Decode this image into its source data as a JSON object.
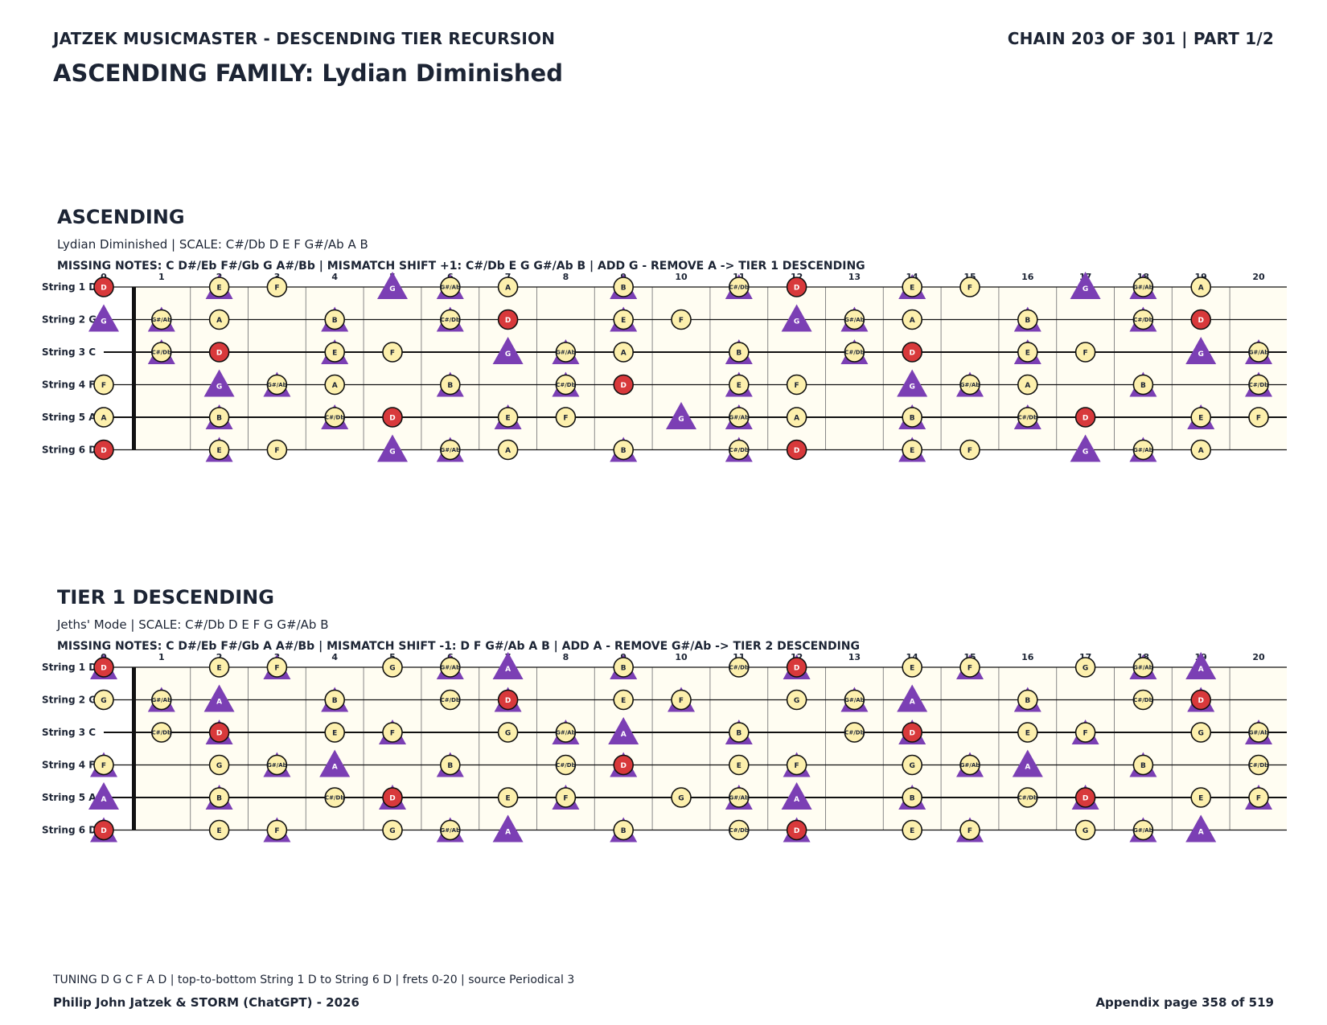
{
  "header": {
    "left": "JATZEK MUSICMASTER - DESCENDING TIER RECURSION",
    "right": "CHAIN 203 OF 301  |  PART 1/2",
    "family": "ASCENDING FAMILY: Lydian Diminished"
  },
  "colors": {
    "root": "#d8393b",
    "scale": "#fdf0ad",
    "marker": "#7b3fb4",
    "board": "#fffdf2"
  },
  "strings": [
    "String 1 D",
    "String 2 G",
    "String 3 C",
    "String 4 F",
    "String 5 A",
    "String 6 D"
  ],
  "fret_numbers": [
    "0",
    "1",
    "2",
    "3",
    "4",
    "5",
    "6",
    "7",
    "8",
    "9",
    "10",
    "11",
    "12",
    "13",
    "14",
    "15",
    "16",
    "17",
    "18",
    "19",
    "20"
  ],
  "sections": [
    {
      "title": "ASCENDING",
      "scale_line": "Lydian Diminished  |  SCALE: C#/Db D E F G#/Ab A B",
      "missing_line": "MISSING NOTES: C D#/Eb F#/Gb G A#/Bb  |  MISMATCH SHIFT +1: C#/Db E G G#/Ab B  |  ADD G - REMOVE A -> TIER 1 DESCENDING",
      "rows": [
        [
          "D",
          "",
          "E",
          "F",
          "",
          "",
          "G#/Ab",
          "A",
          "",
          "B",
          "",
          "C#/Db",
          "D",
          "",
          "E",
          "F",
          "",
          "",
          "G#/Ab",
          "A",
          ""
        ],
        [
          "",
          "G#/Ab",
          "A",
          "",
          "B",
          "",
          "C#/Db",
          "D",
          "",
          "E",
          "F",
          "",
          "",
          "G#/Ab",
          "A",
          "",
          "B",
          "",
          "C#/Db",
          "D",
          ""
        ],
        [
          "",
          "C#/Db",
          "D",
          "",
          "E",
          "F",
          "",
          "",
          "G#/Ab",
          "A",
          "",
          "B",
          "",
          "C#/Db",
          "D",
          "",
          "E",
          "F",
          "",
          "",
          "G#/Ab"
        ],
        [
          "F",
          "",
          "",
          "G#/Ab",
          "A",
          "",
          "B",
          "",
          "C#/Db",
          "D",
          "",
          "E",
          "F",
          "",
          "",
          "G#/Ab",
          "A",
          "",
          "B",
          "",
          "C#/Db"
        ],
        [
          "A",
          "",
          "B",
          "",
          "C#/Db",
          "D",
          "",
          "E",
          "F",
          "",
          "",
          "G#/Ab",
          "A",
          "",
          "B",
          "",
          "C#/Db",
          "D",
          "",
          "E",
          "F"
        ],
        [
          "D",
          "",
          "E",
          "F",
          "",
          "",
          "G#/Ab",
          "A",
          "",
          "B",
          "",
          "C#/Db",
          "D",
          "",
          "E",
          "F",
          "",
          "",
          "G#/Ab",
          "A",
          ""
        ]
      ],
      "markers": [
        [
          "",
          "",
          "t",
          "",
          "",
          "T",
          "t",
          "",
          "",
          "t",
          "",
          "t",
          "",
          "",
          "t",
          "",
          "",
          "T",
          "t",
          "",
          ""
        ],
        [
          "T",
          "t",
          "",
          "",
          "t",
          "",
          "t",
          "",
          "",
          "t",
          "",
          "",
          "T",
          "t",
          "",
          "",
          "t",
          "",
          "t",
          "",
          ""
        ],
        [
          "",
          "t",
          "",
          "",
          "t",
          "",
          "",
          "T",
          "t",
          "",
          "",
          "t",
          "",
          "t",
          "",
          "",
          "t",
          "",
          "",
          "T",
          "t"
        ],
        [
          "",
          "",
          "T",
          "t",
          "",
          "",
          "t",
          "",
          "t",
          "",
          "",
          "t",
          "",
          "",
          "T",
          "t",
          "",
          "",
          "t",
          "",
          "t"
        ],
        [
          "",
          "",
          "t",
          "",
          "t",
          "",
          "",
          "t",
          "",
          "",
          "T",
          "t",
          "",
          "",
          "t",
          "",
          "t",
          "",
          "",
          "t",
          ""
        ],
        [
          "",
          "",
          "t",
          "",
          "",
          "T",
          "t",
          "",
          "",
          "t",
          "",
          "t",
          "",
          "",
          "t",
          "",
          "",
          "T",
          "t",
          "",
          ""
        ]
      ],
      "marker_labels": [
        [
          "",
          "",
          "",
          "",
          "",
          "G",
          "",
          "",
          "",
          "",
          "",
          "",
          "",
          "",
          "",
          "",
          "",
          "G",
          "",
          "",
          ""
        ],
        [
          "G",
          "",
          "",
          "",
          "",
          "",
          "",
          "",
          "",
          "",
          "",
          "",
          "G",
          "",
          "",
          "",
          "",
          "",
          "",
          "",
          ""
        ],
        [
          "",
          "",
          "",
          "",
          "",
          "",
          "",
          "G",
          "",
          "",
          "",
          "",
          "",
          "",
          "",
          "",
          "",
          "",
          "",
          "G",
          ""
        ],
        [
          "",
          "",
          "G",
          "",
          "",
          "",
          "",
          "",
          "",
          "",
          "",
          "",
          "",
          "",
          "G",
          "",
          "",
          "",
          "",
          "",
          ""
        ],
        [
          "",
          "",
          "",
          "",
          "",
          "",
          "",
          "",
          "",
          "",
          "G",
          "",
          "",
          "",
          "",
          "",
          "",
          "",
          "",
          "",
          ""
        ],
        [
          "",
          "",
          "",
          "",
          "",
          "G",
          "",
          "",
          "",
          "",
          "",
          "",
          "",
          "",
          "",
          "",
          "",
          "G",
          "",
          "",
          ""
        ]
      ]
    },
    {
      "title": "TIER 1 DESCENDING",
      "scale_line": "Jeths' Mode  |  SCALE: C#/Db D E F G G#/Ab B",
      "missing_line": "MISSING NOTES: C D#/Eb F#/Gb A A#/Bb  |  MISMATCH SHIFT -1: D F G#/Ab A B  |  ADD A - REMOVE G#/Ab -> TIER 2 DESCENDING",
      "rows": [
        [
          "D",
          "",
          "E",
          "F",
          "",
          "G",
          "G#/Ab",
          "",
          "",
          "B",
          "",
          "C#/Db",
          "D",
          "",
          "E",
          "F",
          "",
          "G",
          "G#/Ab",
          "",
          ""
        ],
        [
          "G",
          "G#/Ab",
          "",
          "",
          "B",
          "",
          "C#/Db",
          "D",
          "",
          "E",
          "F",
          "",
          "G",
          "G#/Ab",
          "",
          "",
          "B",
          "",
          "C#/Db",
          "D",
          ""
        ],
        [
          "",
          "C#/Db",
          "D",
          "",
          "E",
          "F",
          "",
          "G",
          "G#/Ab",
          "",
          "",
          "B",
          "",
          "C#/Db",
          "D",
          "",
          "E",
          "F",
          "",
          "G",
          "G#/Ab"
        ],
        [
          "F",
          "",
          "G",
          "G#/Ab",
          "",
          "",
          "B",
          "",
          "C#/Db",
          "D",
          "",
          "E",
          "F",
          "",
          "G",
          "G#/Ab",
          "",
          "",
          "B",
          "",
          "C#/Db"
        ],
        [
          "",
          "",
          "B",
          "",
          "C#/Db",
          "D",
          "",
          "E",
          "F",
          "",
          "G",
          "G#/Ab",
          "",
          "",
          "B",
          "",
          "C#/Db",
          "D",
          "",
          "E",
          "F"
        ],
        [
          "D",
          "",
          "E",
          "F",
          "",
          "G",
          "G#/Ab",
          "",
          "",
          "B",
          "",
          "C#/Db",
          "D",
          "",
          "E",
          "F",
          "",
          "G",
          "G#/Ab",
          "",
          ""
        ]
      ],
      "markers": [
        [
          "t",
          "",
          "",
          "t",
          "",
          "",
          "t",
          "T",
          "",
          "t",
          "",
          "",
          "t",
          "",
          "",
          "t",
          "",
          "",
          "t",
          "T",
          ""
        ],
        [
          "",
          "t",
          "T",
          "",
          "t",
          "",
          "",
          "t",
          "",
          "",
          "t",
          "",
          "",
          "t",
          "T",
          "",
          "t",
          "",
          "",
          "t",
          ""
        ],
        [
          "",
          "",
          "t",
          "",
          "",
          "t",
          "",
          "",
          "t",
          "T",
          "",
          "t",
          "",
          "",
          "t",
          "",
          "",
          "t",
          "",
          "",
          "t"
        ],
        [
          "t",
          "",
          "",
          "t",
          "T",
          "",
          "t",
          "",
          "",
          "t",
          "",
          "",
          "t",
          "",
          "",
          "t",
          "T",
          "",
          "t",
          "",
          ""
        ],
        [
          "T",
          "",
          "t",
          "",
          "",
          "t",
          "",
          "",
          "t",
          "",
          "",
          "t",
          "T",
          "",
          "t",
          "",
          "",
          "t",
          "",
          "",
          "t"
        ],
        [
          "t",
          "",
          "",
          "t",
          "",
          "",
          "t",
          "T",
          "",
          "t",
          "",
          "",
          "t",
          "",
          "",
          "t",
          "",
          "",
          "t",
          "T",
          ""
        ]
      ],
      "marker_labels": [
        [
          "",
          "",
          "",
          "",
          "",
          "",
          "",
          "A",
          "",
          "",
          "",
          "",
          "",
          "",
          "",
          "",
          "",
          "",
          "",
          "A",
          ""
        ],
        [
          "",
          "",
          "A",
          "",
          "",
          "",
          "",
          "",
          "",
          "",
          "",
          "",
          "",
          "",
          "A",
          "",
          "",
          "",
          "",
          "",
          ""
        ],
        [
          "",
          "",
          "",
          "",
          "",
          "",
          "",
          "",
          "",
          "A",
          "",
          "",
          "",
          "",
          "",
          "",
          "",
          "",
          "",
          "",
          ""
        ],
        [
          "",
          "",
          "",
          "",
          "A",
          "",
          "",
          "",
          "",
          "",
          "",
          "",
          "",
          "",
          "",
          "",
          "A",
          "",
          "",
          "",
          ""
        ],
        [
          "A",
          "",
          "",
          "",
          "",
          "",
          "",
          "",
          "",
          "",
          "",
          "",
          "A",
          "",
          "",
          "",
          "",
          "",
          "",
          "",
          ""
        ],
        [
          "",
          "",
          "",
          "",
          "",
          "",
          "",
          "A",
          "",
          "",
          "",
          "",
          "",
          "",
          "",
          "",
          "",
          "",
          "",
          "A",
          ""
        ]
      ]
    }
  ],
  "footer": {
    "note": "TUNING D G C F A D | top-to-bottom String 1 D to String 6 D | frets 0-20 | source Periodical 3",
    "authors": "Philip John Jatzek & STORM (ChatGPT) - 2026",
    "page": "Appendix page 358 of 519"
  }
}
